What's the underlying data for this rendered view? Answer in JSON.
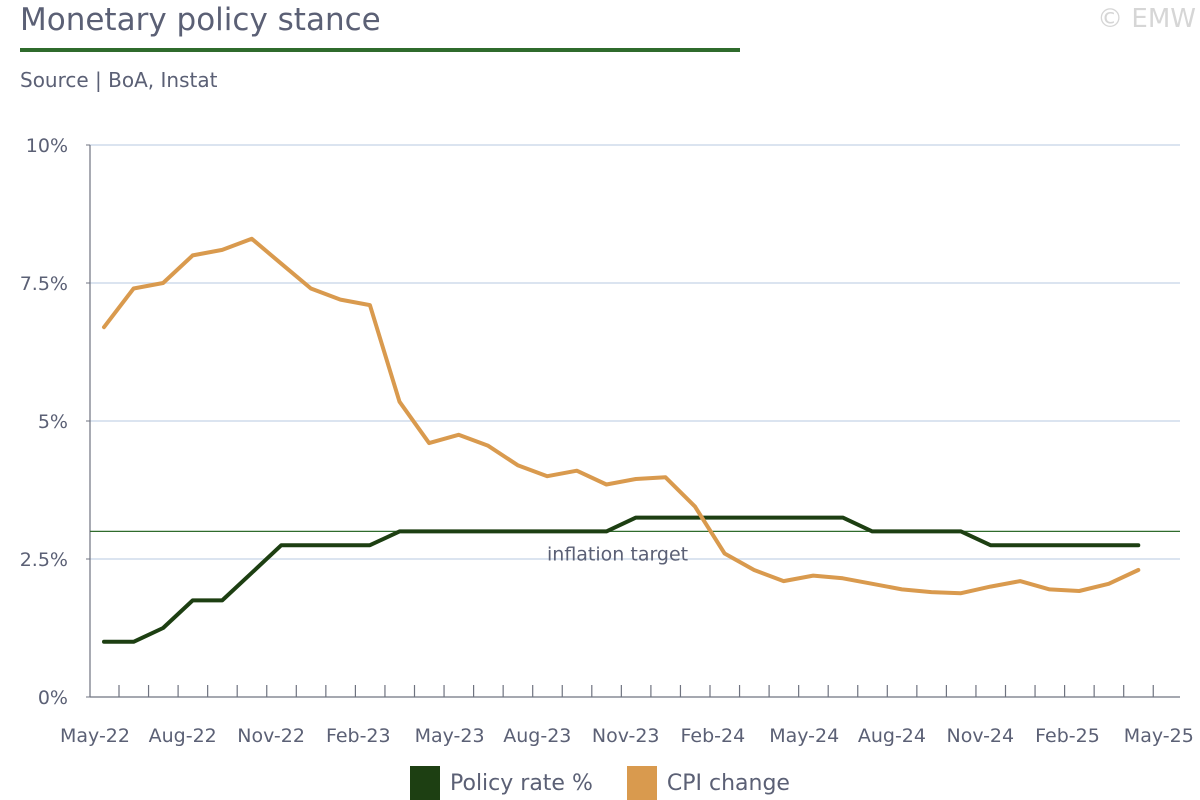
{
  "header": {
    "title": "Monetary policy stance",
    "source": "Source | BoA, Instat",
    "copyright": "© EMW"
  },
  "chart_data": {
    "type": "line",
    "title": "Monetary policy stance",
    "xlabel": "",
    "ylabel": "",
    "ylim": [
      0,
      10
    ],
    "yticks": [
      0,
      2.5,
      5,
      7.5,
      10
    ],
    "ytick_labels": [
      "0%",
      "2.5%",
      "5%",
      "7.5%",
      "10%"
    ],
    "x": [
      "May-22",
      "Jun-22",
      "Jul-22",
      "Aug-22",
      "Sep-22",
      "Oct-22",
      "Nov-22",
      "Dec-22",
      "Jan-23",
      "Feb-23",
      "Mar-23",
      "Apr-23",
      "May-23",
      "Jun-23",
      "Jul-23",
      "Aug-23",
      "Sep-23",
      "Oct-23",
      "Nov-23",
      "Dec-23",
      "Jan-24",
      "Feb-24",
      "Mar-24",
      "Apr-24",
      "May-24",
      "Jun-24",
      "Jul-24",
      "Aug-24",
      "Sep-24",
      "Oct-24",
      "Nov-24",
      "Dec-24",
      "Jan-25",
      "Feb-25",
      "Mar-25",
      "Apr-25",
      "May-25"
    ],
    "xtick_labels": [
      "May-22",
      "Aug-22",
      "Nov-22",
      "Feb-23",
      "May-23",
      "Aug-23",
      "Nov-23",
      "Feb-24",
      "May-24",
      "Aug-24",
      "Nov-24",
      "Feb-25",
      "May-25"
    ],
    "series": [
      {
        "name": "Policy rate %",
        "color": "#1d3f12",
        "values": [
          1.0,
          1.0,
          1.25,
          1.75,
          1.75,
          2.25,
          2.75,
          2.75,
          2.75,
          2.75,
          3.0,
          3.0,
          3.0,
          3.0,
          3.0,
          3.0,
          3.0,
          3.0,
          3.25,
          3.25,
          3.25,
          3.25,
          3.25,
          3.25,
          3.25,
          3.25,
          3.0,
          3.0,
          3.0,
          3.0,
          2.75,
          2.75,
          2.75,
          2.75,
          2.75,
          2.75,
          null
        ]
      },
      {
        "name": "CPI change",
        "color": "#d99a4e",
        "values": [
          6.7,
          7.4,
          7.5,
          8.0,
          8.1,
          8.3,
          7.85,
          7.4,
          7.2,
          7.1,
          5.35,
          4.6,
          4.75,
          4.55,
          4.2,
          4.0,
          4.1,
          3.85,
          3.95,
          3.98,
          3.45,
          2.6,
          2.3,
          2.1,
          2.2,
          2.15,
          2.05,
          1.95,
          1.9,
          1.88,
          2.0,
          2.1,
          1.95,
          1.92,
          2.05,
          2.3,
          null
        ]
      }
    ],
    "reference_line": {
      "value": 3.0,
      "label": "inflation target",
      "color": "#2f6b2c"
    },
    "grid": true,
    "legend": "bottom"
  }
}
